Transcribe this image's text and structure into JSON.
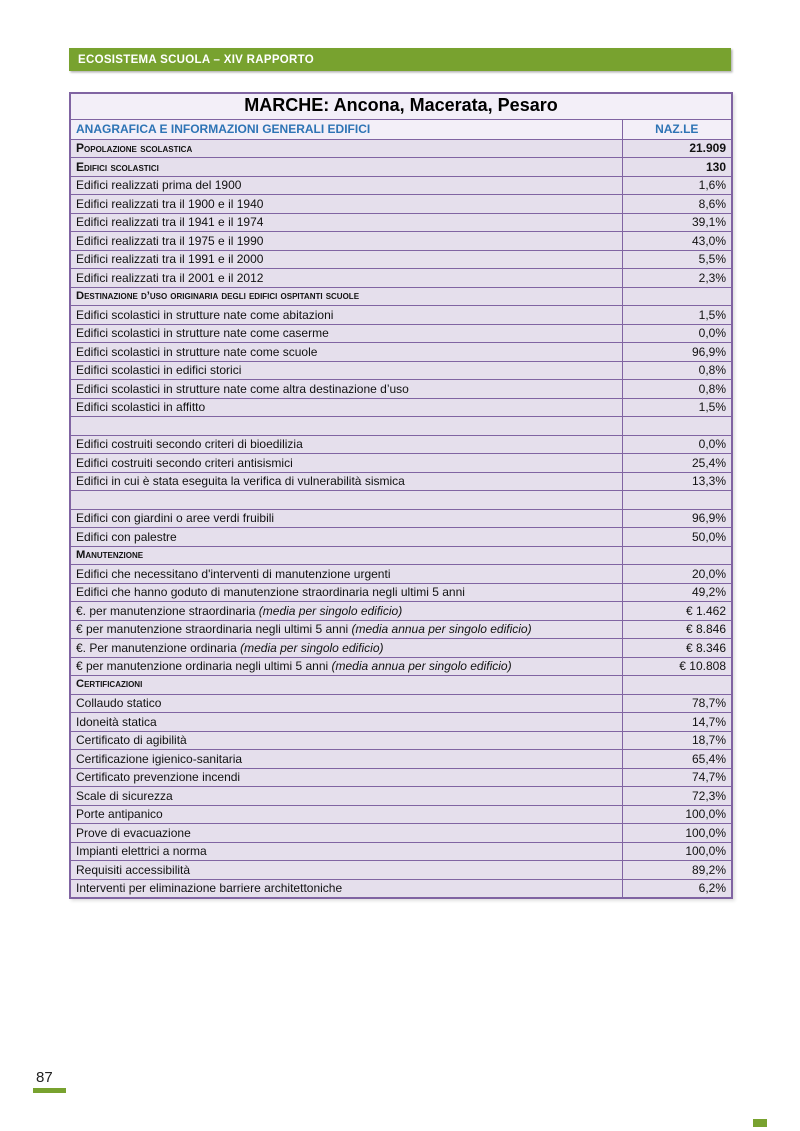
{
  "header_bar": {
    "title": "ECOSISTEMA SCUOLA – XIV RAPPORTO"
  },
  "table": {
    "title": "MARCHE: Ancona, Macerata, Pesaro",
    "columns": {
      "info": "ANAGRAFICA E INFORMAZIONI GENERALI EDIFICI",
      "value": "NAZ.LE"
    },
    "rows": [
      {
        "style": "bold",
        "label": "Popolazione scolastica",
        "value": "21.909"
      },
      {
        "style": "bold",
        "label": "Edifici scolastici",
        "value": "130"
      },
      {
        "style": "data",
        "label": "Edifici realizzati prima del 1900",
        "value": "1,6%"
      },
      {
        "style": "data",
        "label": "Edifici realizzati tra il 1900 e il 1940",
        "value": "8,6%"
      },
      {
        "style": "data",
        "label": "Edifici realizzati tra il 1941 e il 1974",
        "value": "39,1%"
      },
      {
        "style": "data",
        "label": "Edifici realizzati tra il 1975 e il 1990",
        "value": "43,0%"
      },
      {
        "style": "data",
        "label": "Edifici realizzati tra il 1991 e il 2000",
        "value": "5,5%"
      },
      {
        "style": "data",
        "label": "Edifici realizzati tra il 2001 e il 2012",
        "value": "2,3%"
      },
      {
        "style": "section",
        "label": "Destinazione d’uso originaria degli edifici ospitanti scuole",
        "value": ""
      },
      {
        "style": "data",
        "label": "Edifici scolastici in strutture nate come abitazioni",
        "value": "1,5%"
      },
      {
        "style": "data",
        "label": "Edifici scolastici in strutture nate come caserme",
        "value": "0,0%"
      },
      {
        "style": "data",
        "label": "Edifici scolastici in strutture nate come scuole",
        "value": "96,9%"
      },
      {
        "style": "data",
        "label": "Edifici scolastici in edifici storici",
        "value": "0,8%"
      },
      {
        "style": "data",
        "label": "Edifici scolastici in strutture nate come altra destinazione d’uso",
        "value": "0,8%"
      },
      {
        "style": "data",
        "label": "Edifici scolastici in affitto",
        "value": "1,5%"
      },
      {
        "style": "blank",
        "label": "",
        "value": ""
      },
      {
        "style": "data",
        "label": "Edifici costruiti secondo criteri di bioedilizia",
        "value": "0,0%"
      },
      {
        "style": "data",
        "label": "Edifici costruiti secondo criteri antisismici",
        "value": "25,4%"
      },
      {
        "style": "data",
        "label": "Edifici in cui è stata eseguita la verifica di vulnerabilità sismica",
        "value": "13,3%"
      },
      {
        "style": "blank",
        "label": "",
        "value": ""
      },
      {
        "style": "data",
        "label": "Edifici con giardini o aree verdi fruibili",
        "value": "96,9%"
      },
      {
        "style": "data",
        "label": "Edifici con palestre",
        "value": "50,0%"
      },
      {
        "style": "section",
        "label": "Manutenzione",
        "value": ""
      },
      {
        "style": "data",
        "label": "Edifici che necessitano d'interventi di manutenzione urgenti",
        "value": "20,0%"
      },
      {
        "style": "data",
        "label": "Edifici che hanno goduto di manutenzione straordinaria negli ultimi 5 anni",
        "value": "49,2%"
      },
      {
        "style": "data",
        "label": "€. per manutenzione straordinaria ",
        "italic": "(media per singolo edificio)",
        "value": "€ 1.462"
      },
      {
        "style": "data",
        "label": "€ per manutenzione straordinaria negli ultimi 5 anni ",
        "italic": "(media annua per singolo edificio)",
        "value": "€ 8.846"
      },
      {
        "style": "data",
        "label": "€. Per manutenzione ordinaria ",
        "italic": "(media per singolo edificio)",
        "value": "€ 8.346"
      },
      {
        "style": "data",
        "label": "€ per manutenzione ordinaria negli ultimi 5 anni ",
        "italic": "(media annua per singolo edificio)",
        "value": "€ 10.808"
      },
      {
        "style": "section",
        "label": "Certificazioni",
        "value": ""
      },
      {
        "style": "data",
        "label": "Collaudo statico",
        "value": "78,7%"
      },
      {
        "style": "data",
        "label": "Idoneità statica",
        "value": "14,7%"
      },
      {
        "style": "data",
        "label": "Certificato di agibilità",
        "value": "18,7%"
      },
      {
        "style": "data",
        "label": "Certificazione igienico-sanitaria",
        "value": "65,4%"
      },
      {
        "style": "data",
        "label": "Certificato prevenzione incendi",
        "value": "74,7%"
      },
      {
        "style": "data",
        "label": "Scale di sicurezza",
        "value": "72,3%"
      },
      {
        "style": "data",
        "label": "Porte antipanico",
        "value": "100,0%"
      },
      {
        "style": "data",
        "label": "Prove di evacuazione",
        "value": "100,0%"
      },
      {
        "style": "data",
        "label": "Impianti elettrici a norma",
        "value": "100,0%"
      },
      {
        "style": "data",
        "label": "Requisiti accessibilità",
        "value": "89,2%"
      },
      {
        "style": "data",
        "label": "Interventi per eliminazione barriere architettoniche",
        "value": "6,2%"
      }
    ]
  },
  "footer": {
    "page_number": "87"
  },
  "colors": {
    "green": "#78A22F",
    "purple_border": "#8064A2",
    "row_fill": "#E5DFEC",
    "light_fill": "#F3EFF8",
    "header_blue": "#2E74B5"
  }
}
